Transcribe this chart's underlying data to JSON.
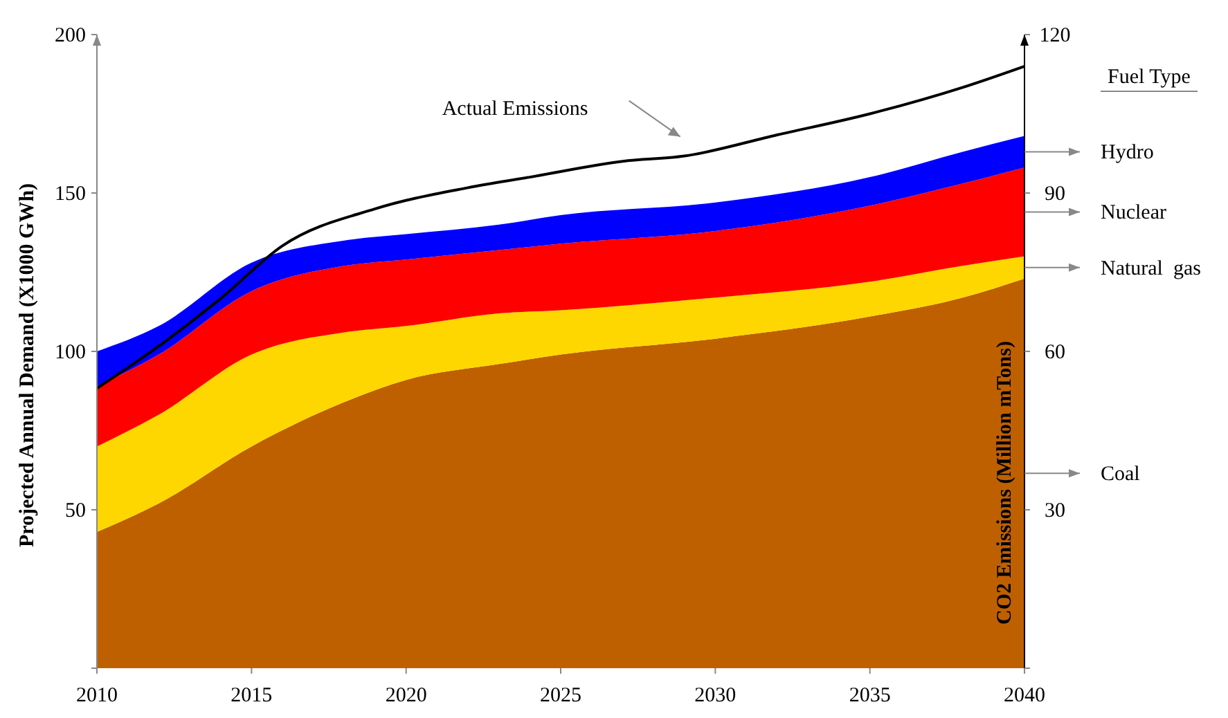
{
  "chart_data": {
    "type": "area",
    "stacked": true,
    "ylabel": "Projected Annual Demand (X1000 GWh)",
    "y2label": "CO2 Emissions (Million mTons)",
    "legend_title": "Fuel Type",
    "legend": "right",
    "x": [
      2010,
      2012,
      2015,
      2018,
      2020,
      2023,
      2025,
      2030,
      2035,
      2038,
      2040
    ],
    "xlim": [
      2010,
      2040
    ],
    "xticks": [
      2010,
      2015,
      2020,
      2025,
      2030,
      2035,
      2040
    ],
    "ylim": [
      0,
      200
    ],
    "yticks": [
      {
        "value": 0,
        "label": null
      },
      50,
      100,
      150,
      200
    ],
    "y2lim": [
      0,
      120
    ],
    "y2ticks": [
      {
        "value": 0,
        "label": null
      },
      30,
      60,
      90,
      120
    ],
    "series": [
      {
        "name": "Coal",
        "color": "#bf6000",
        "values": [
          43,
          52,
          70,
          84,
          91,
          96,
          99,
          104,
          111,
          117,
          123
        ]
      },
      {
        "name": "Natural  gas",
        "color": "#ffd700",
        "values": [
          27,
          28,
          29,
          22,
          17,
          16,
          14,
          13,
          11,
          10,
          7
        ]
      },
      {
        "name": "Nuclear",
        "color": "#ff0000",
        "values": [
          19,
          19,
          20,
          21,
          21,
          20,
          21,
          21,
          24,
          26,
          28
        ]
      },
      {
        "name": "Hydro",
        "color": "#0000ff",
        "values": [
          11,
          9,
          9,
          8,
          8,
          8,
          9,
          9,
          9,
          10,
          10
        ]
      },
      {
        "name": "Actual Emissions",
        "type": "line",
        "axis": "y2",
        "color": "#000000",
        "x": [
          2010,
          2012,
          2014,
          2016,
          2019,
          2022,
          2024,
          2027,
          2029,
          2032,
          2035,
          2038,
          2040
        ],
        "values": [
          53,
          61,
          70,
          80,
          87,
          91,
          93,
          96,
          97,
          101,
          105,
          110,
          114
        ]
      }
    ]
  }
}
